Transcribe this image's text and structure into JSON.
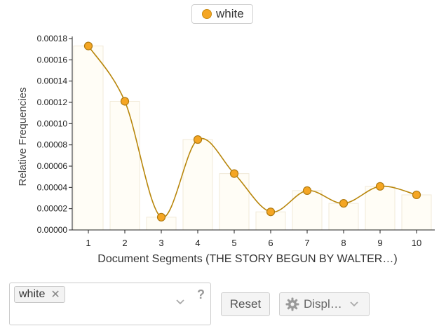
{
  "legend": {
    "label": "white",
    "color": "#f5a623"
  },
  "chart_data": {
    "type": "line",
    "x": [
      1,
      2,
      3,
      4,
      5,
      6,
      7,
      8,
      9,
      10
    ],
    "categories": [
      "1",
      "2",
      "3",
      "4",
      "5",
      "6",
      "7",
      "8",
      "9",
      "10"
    ],
    "series": [
      {
        "name": "white",
        "values": [
          0.000173,
          0.000121,
          1.2e-05,
          8.5e-05,
          5.3e-05,
          1.7e-05,
          3.7e-05,
          2.5e-05,
          4.1e-05,
          3.3e-05
        ],
        "color": "#b8860b",
        "marker_color": "#f5a623"
      }
    ],
    "bars_background": true,
    "xlabel": "Document Segments (THE STORY BEGUN BY WALTER…)",
    "ylabel": "Relative Frequencies",
    "ylim": [
      0,
      0.00018
    ],
    "yticks": [
      "0.00000",
      "0.00002",
      "0.00004",
      "0.00006",
      "0.00008",
      "0.00010",
      "0.00012",
      "0.00014",
      "0.00016",
      "0.00018"
    ],
    "grid": false
  },
  "controls": {
    "term_chip": "white",
    "chip_remove": "✕",
    "help": "?",
    "reset_label": "Reset",
    "display_label": "Displ…"
  }
}
